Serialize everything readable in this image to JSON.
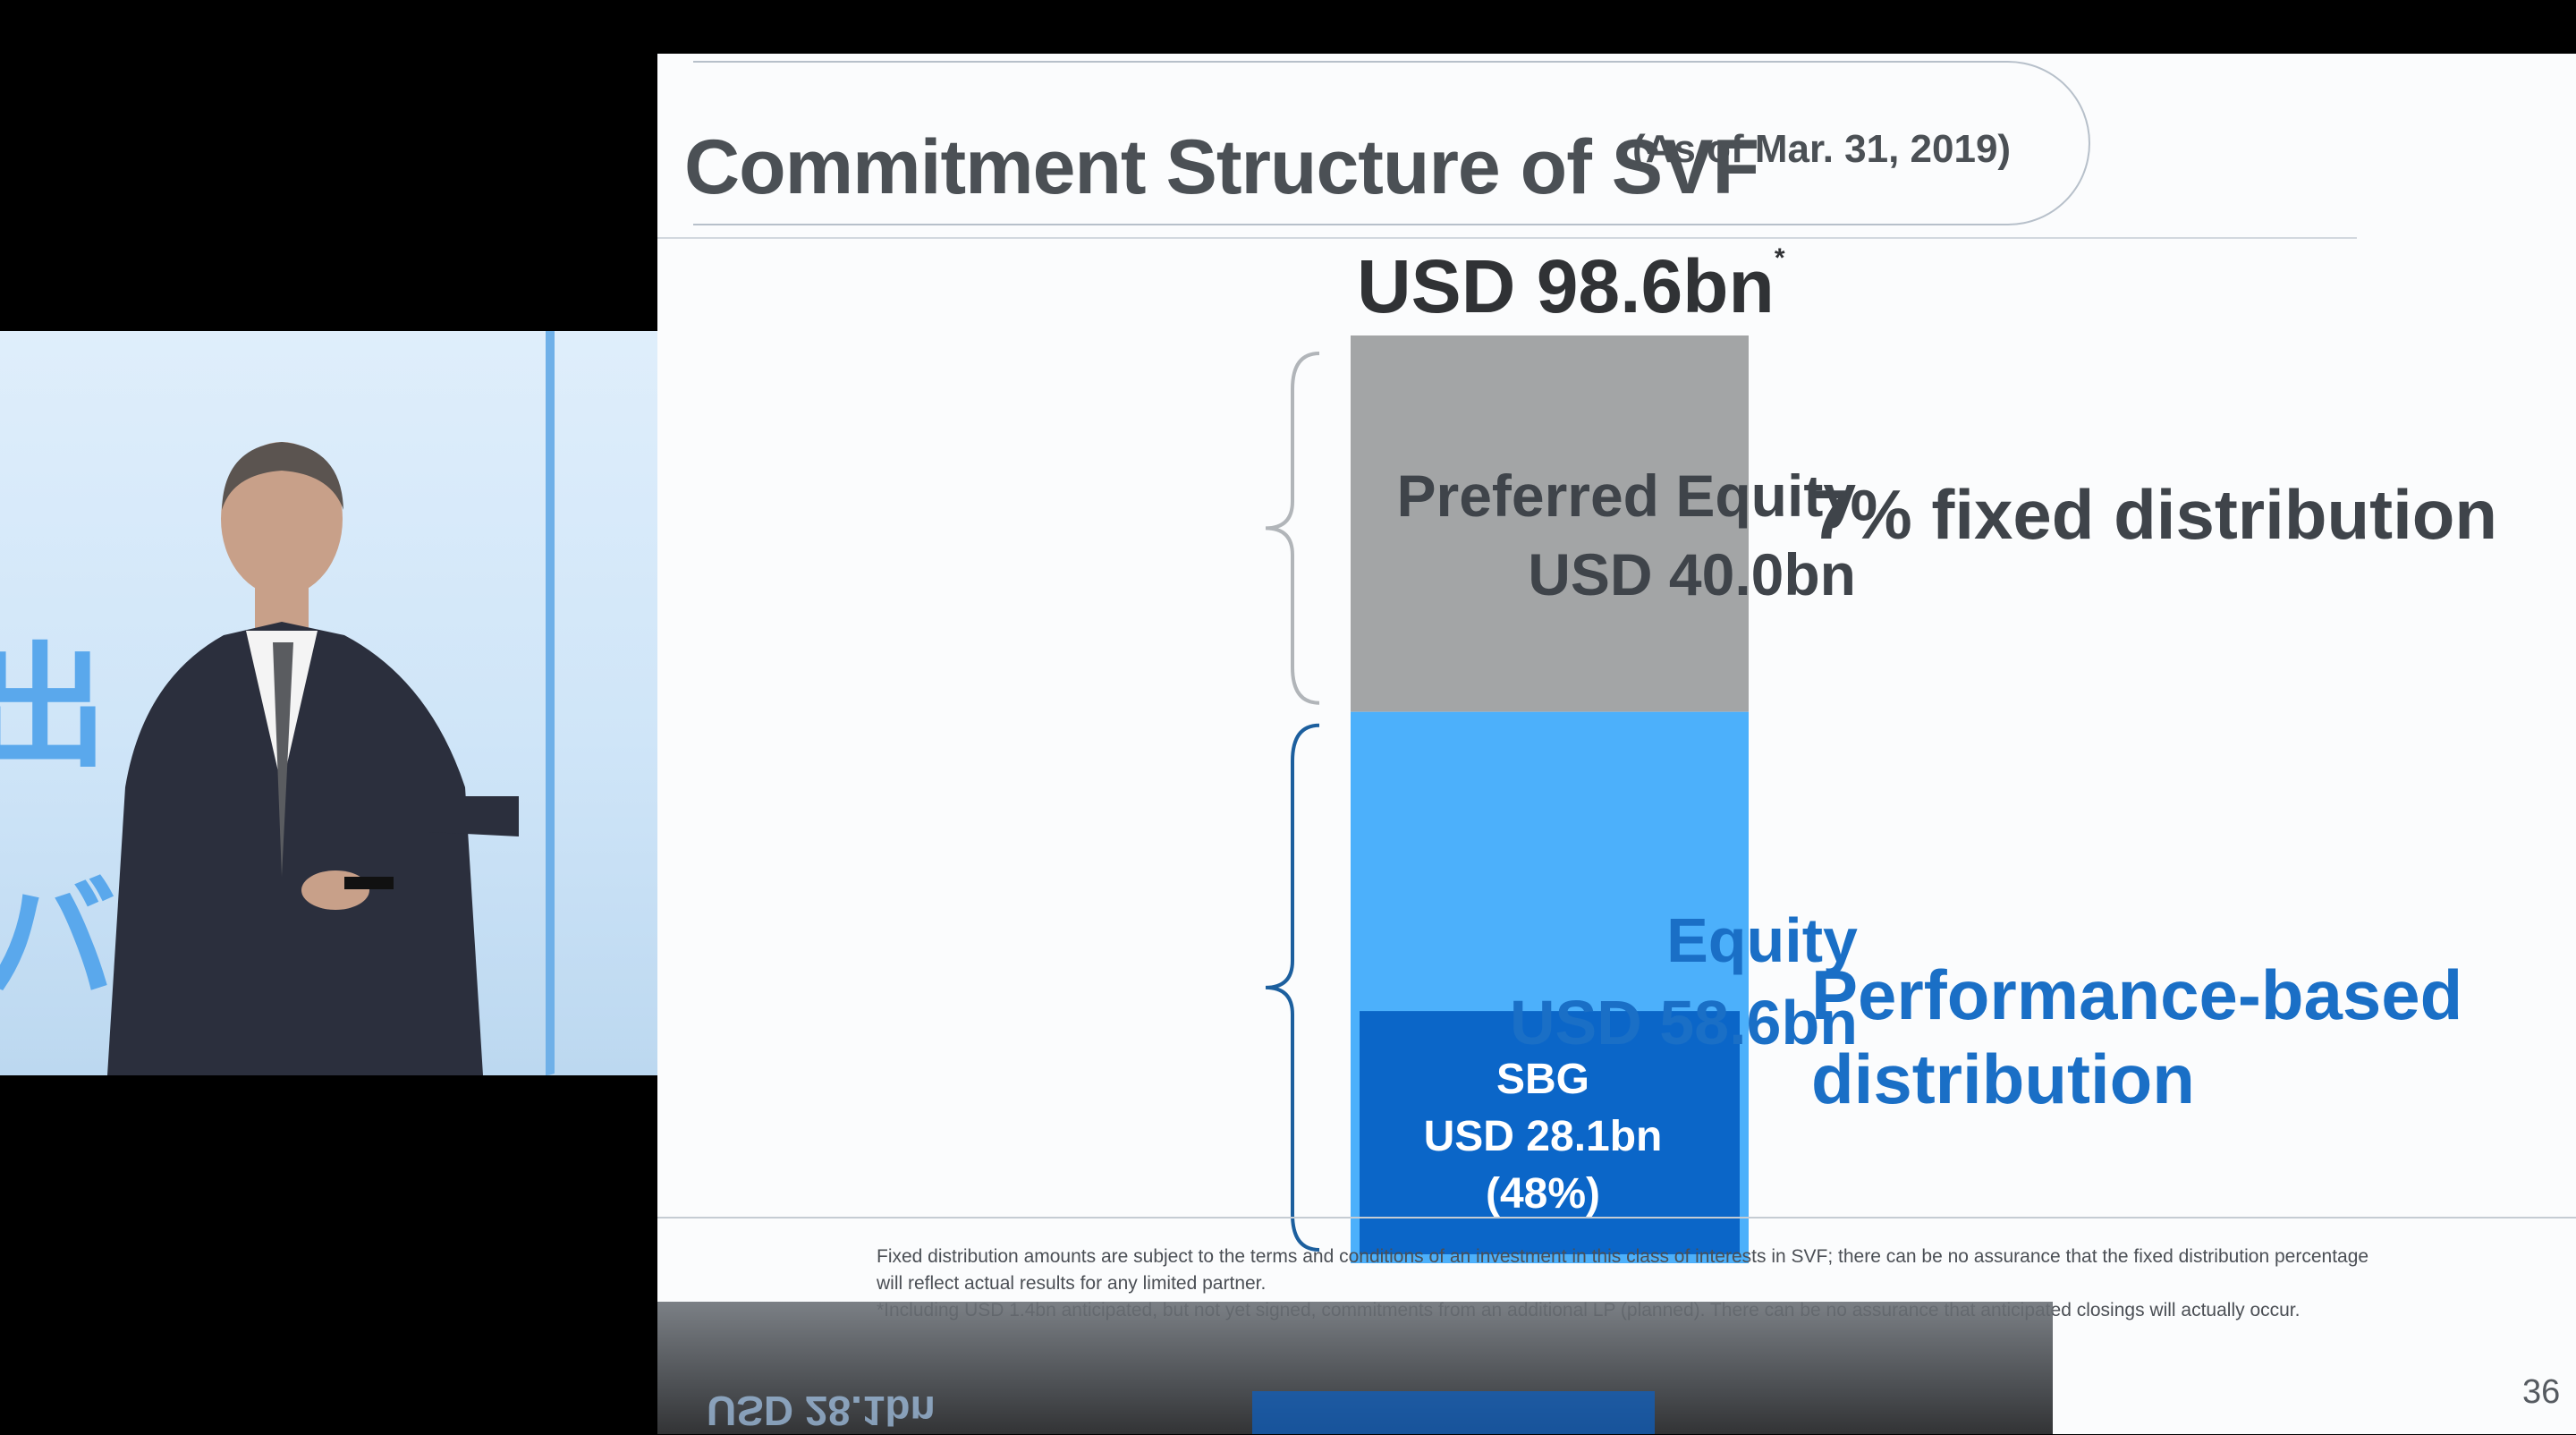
{
  "slide": {
    "title": "Commitment Structure of SVF",
    "subtitle": "(As of Mar. 31, 2019)",
    "page_number": "36",
    "footnotes": [
      "Fixed distribution amounts are subject to the terms and conditions of an investment in this class of interests in SVF; there can be no assurance that the fixed distribution percentage",
      "will reflect actual results for any limited partner.",
      "*Including USD 1.4bn anticipated, but not yet signed, commitments from an additional LP (planned). There can be no assurance that anticipated closings will actually occur."
    ]
  },
  "reflection": {
    "text": "USD 28.1bn"
  },
  "video": {
    "glyphs": [
      "出",
      "バ"
    ]
  },
  "chart_data": {
    "type": "bar",
    "stacked": true,
    "total": {
      "label": "USD 98.6bn",
      "marker": "*",
      "value": 98.6
    },
    "segments": [
      {
        "name": "Preferred Equity",
        "value_label": "USD 40.0bn",
        "value": 40.0,
        "distribution": "7% fixed distribution",
        "color": "#a3a5a6"
      },
      {
        "name": "Equity",
        "value_label": "USD 58.6bn",
        "value": 58.6,
        "distribution_lines": [
          "Performance-based",
          "distribution"
        ],
        "color": "#4cb0fb"
      }
    ],
    "inner_segment": {
      "lines": [
        "SBG",
        "USD 28.1bn",
        "(48%)"
      ],
      "value": 28.1,
      "color": "#0b66c8"
    },
    "colors": {
      "brace_gray": "#b1b5b9",
      "brace_blue": "#1c5f9e"
    }
  }
}
